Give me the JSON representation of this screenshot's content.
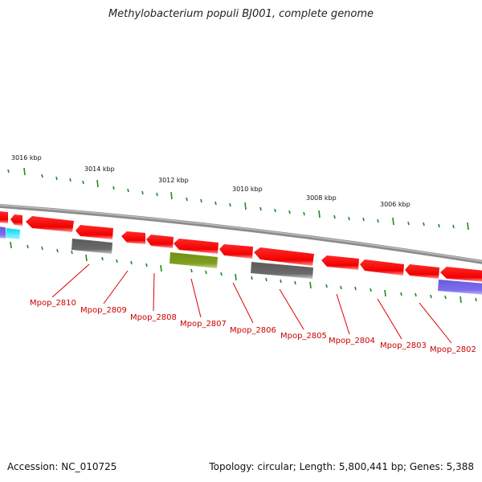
{
  "title": "Methylobacterium populi BJ001, complete genome",
  "accession": "Accession: NC_010725",
  "topology": "Topology: circular; Length: 5,800,441 bp; Genes: 5,388",
  "scale_labels": [
    "3016 kbp",
    "3014 kbp",
    "3012 kbp",
    "3010 kbp",
    "3008 kbp",
    "3006 kbp"
  ],
  "gene_labels": [
    "Mpop_2810",
    "Mpop_2809",
    "Mpop_2808",
    "Mpop_2807",
    "Mpop_2806",
    "Mpop_2805",
    "Mpop_2804",
    "Mpop_2803",
    "Mpop_2802"
  ],
  "colors": {
    "cds": "#ff0000",
    "label": "#cc0000",
    "tick": "#228b22",
    "backbone": "#888888",
    "gray_feature": "#666666",
    "olive_feature": "#7a9a1a",
    "cyan_feature": "#00e5ff",
    "purple_feature": "#7b68ee"
  }
}
